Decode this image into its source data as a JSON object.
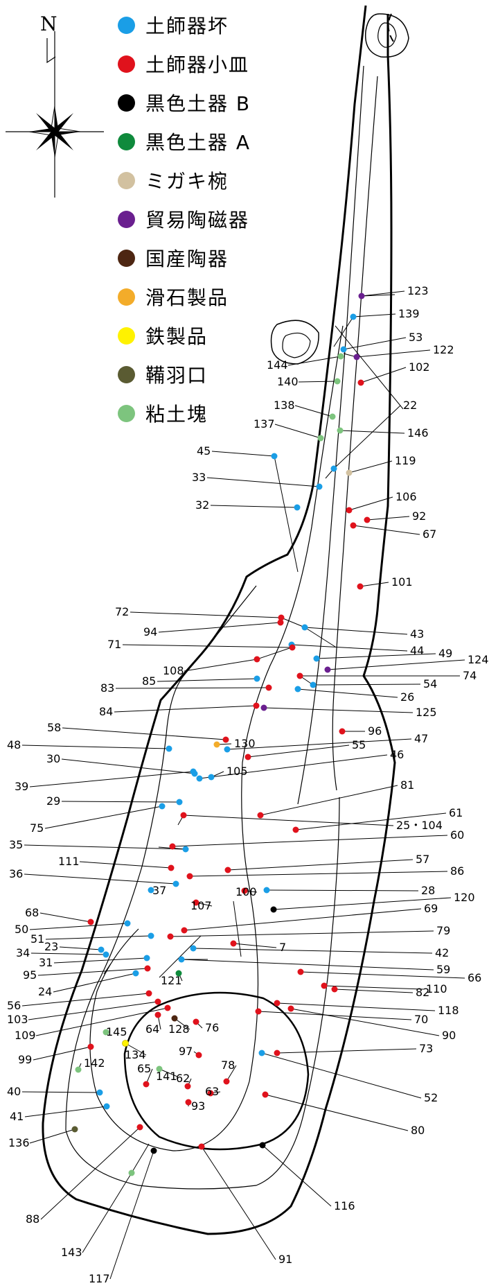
{
  "compass": {
    "north_label": "N"
  },
  "legend": [
    {
      "key": "hajiki-tsuki",
      "label": "土師器坏",
      "color": "#1a9ee6"
    },
    {
      "key": "hajiki-kozara",
      "label": "土師器小皿",
      "color": "#e0121c"
    },
    {
      "key": "kokushoku-b",
      "label": "黒色土器 B",
      "color": "#000000"
    },
    {
      "key": "kokushoku-a",
      "label": "黒色土器 A",
      "color": "#0f8a3c"
    },
    {
      "key": "migaki-wan",
      "label": "ミガキ椀",
      "color": "#d2c1a0"
    },
    {
      "key": "boeki-tojiki",
      "label": "貿易陶磁器",
      "color": "#6a1f8f"
    },
    {
      "key": "kokusan-toki",
      "label": "国産陶器",
      "color": "#4d2612"
    },
    {
      "key": "kasseki",
      "label": "滑石製品",
      "color": "#f3ac2a"
    },
    {
      "key": "tetsu",
      "label": "鉄製品",
      "color": "#fff200"
    },
    {
      "key": "fuigo",
      "label": "鞴羽口",
      "color": "#5a5b32"
    },
    {
      "key": "nendokai",
      "label": "粘土塊",
      "color": "#7dc47e"
    }
  ],
  "finds": [
    {
      "n": "123",
      "type": "boeki-tojiki"
    },
    {
      "n": "139",
      "type": "hajiki-tsuki"
    },
    {
      "n": "53",
      "type": "hajiki-tsuki"
    },
    {
      "n": "122",
      "type": "boeki-tojiki"
    },
    {
      "n": "144",
      "type": "nendokai"
    },
    {
      "n": "102",
      "type": "hajiki-kozara"
    },
    {
      "n": "140",
      "type": "nendokai"
    },
    {
      "n": "22",
      "type": "hajiki-tsuki"
    },
    {
      "n": "138",
      "type": "nendokai"
    },
    {
      "n": "146",
      "type": "nendokai"
    },
    {
      "n": "137",
      "type": "nendokai"
    },
    {
      "n": "45",
      "type": "hajiki-tsuki"
    },
    {
      "n": "119",
      "type": "migaki-wan"
    },
    {
      "n": "33",
      "type": "hajiki-tsuki"
    },
    {
      "n": "106",
      "type": "hajiki-kozara"
    },
    {
      "n": "32",
      "type": "hajiki-tsuki"
    },
    {
      "n": "92",
      "type": "hajiki-kozara"
    },
    {
      "n": "67",
      "type": "hajiki-kozara"
    },
    {
      "n": "101",
      "type": "hajiki-kozara"
    },
    {
      "n": "72",
      "type": "hajiki-kozara"
    },
    {
      "n": "43",
      "type": "hajiki-tsuki"
    },
    {
      "n": "94",
      "type": "hajiki-kozara"
    },
    {
      "n": "44",
      "type": "hajiki-tsuki"
    },
    {
      "n": "71",
      "type": "hajiki-kozara"
    },
    {
      "n": "49",
      "type": "hajiki-tsuki"
    },
    {
      "n": "124",
      "type": "boeki-tojiki"
    },
    {
      "n": "108",
      "type": "hajiki-kozara"
    },
    {
      "n": "74",
      "type": "hajiki-kozara"
    },
    {
      "n": "85",
      "type": "hajiki-tsuki"
    },
    {
      "n": "54",
      "type": "hajiki-tsuki"
    },
    {
      "n": "83",
      "type": "hajiki-kozara"
    },
    {
      "n": "26",
      "type": "hajiki-tsuki"
    },
    {
      "n": "84",
      "type": "hajiki-kozara"
    },
    {
      "n": "125",
      "type": "boeki-tojiki"
    },
    {
      "n": "58",
      "type": "hajiki-kozara"
    },
    {
      "n": "96",
      "type": "hajiki-kozara"
    },
    {
      "n": "130",
      "type": "kasseki"
    },
    {
      "n": "48",
      "type": "hajiki-tsuki"
    },
    {
      "n": "55",
      "type": "hajiki-kozara"
    },
    {
      "n": "47",
      "type": "hajiki-tsuki"
    },
    {
      "n": "30",
      "type": "hajiki-tsuki"
    },
    {
      "n": "46",
      "type": "hajiki-tsuki"
    },
    {
      "n": "105",
      "type": "hajiki-tsuki"
    },
    {
      "n": "39",
      "type": "hajiki-tsuki"
    },
    {
      "n": "81",
      "type": "hajiki-kozara"
    },
    {
      "n": "29",
      "type": "hajiki-tsuki"
    },
    {
      "n": "61",
      "type": "hajiki-kozara"
    },
    {
      "n": "75",
      "type": "hajiki-tsuki"
    },
    {
      "n": "25・104",
      "type": "hajiki-kozara"
    },
    {
      "n": "35",
      "type": "hajiki-tsuki"
    },
    {
      "n": "60",
      "type": "hajiki-kozara"
    },
    {
      "n": "111",
      "type": "hajiki-kozara"
    },
    {
      "n": "57",
      "type": "hajiki-kozara"
    },
    {
      "n": "36",
      "type": "hajiki-tsuki"
    },
    {
      "n": "86",
      "type": "hajiki-kozara"
    },
    {
      "n": "37",
      "type": "hajiki-tsuki"
    },
    {
      "n": "100",
      "type": "hajiki-kozara"
    },
    {
      "n": "28",
      "type": "hajiki-tsuki"
    },
    {
      "n": "120",
      "type": "kokushoku-b"
    },
    {
      "n": "68",
      "type": "hajiki-kozara"
    },
    {
      "n": "107",
      "type": "hajiki-kozara"
    },
    {
      "n": "69",
      "type": "hajiki-kozara"
    },
    {
      "n": "50",
      "type": "hajiki-tsuki"
    },
    {
      "n": "51",
      "type": "hajiki-tsuki"
    },
    {
      "n": "79",
      "type": "hajiki-kozara"
    },
    {
      "n": "23",
      "type": "hajiki-tsuki"
    },
    {
      "n": "34",
      "type": "hajiki-tsuki"
    },
    {
      "n": "7",
      "type": "hajiki-kozara"
    },
    {
      "n": "42",
      "type": "hajiki-tsuki"
    },
    {
      "n": "31",
      "type": "hajiki-tsuki"
    },
    {
      "n": "59",
      "type": "hajiki-tsuki"
    },
    {
      "n": "95",
      "type": "hajiki-kozara"
    },
    {
      "n": "66",
      "type": "hajiki-kozara"
    },
    {
      "n": "24",
      "type": "hajiki-tsuki"
    },
    {
      "n": "121",
      "type": "kokushoku-a"
    },
    {
      "n": "110",
      "type": "hajiki-kozara"
    },
    {
      "n": "82",
      "type": "hajiki-kozara"
    },
    {
      "n": "56",
      "type": "hajiki-kozara"
    },
    {
      "n": "118",
      "type": "hajiki-kozara"
    },
    {
      "n": "103",
      "type": "hajiki-kozara"
    },
    {
      "n": "70",
      "type": "hajiki-kozara"
    },
    {
      "n": "109",
      "type": "hajiki-kozara"
    },
    {
      "n": "90",
      "type": "hajiki-kozara"
    },
    {
      "n": "145",
      "type": "nendokai"
    },
    {
      "n": "64",
      "type": "hajiki-kozara"
    },
    {
      "n": "128",
      "type": "kokusan-toki"
    },
    {
      "n": "76",
      "type": "hajiki-kozara"
    },
    {
      "n": "73",
      "type": "hajiki-kozara"
    },
    {
      "n": "99",
      "type": "hajiki-kozara"
    },
    {
      "n": "134",
      "type": "tetsu"
    },
    {
      "n": "97",
      "type": "hajiki-kozara"
    },
    {
      "n": "142",
      "type": "nendokai"
    },
    {
      "n": "65",
      "type": "hajiki-kozara"
    },
    {
      "n": "141",
      "type": "nendokai"
    },
    {
      "n": "78",
      "type": "hajiki-kozara"
    },
    {
      "n": "62",
      "type": "hajiki-kozara"
    },
    {
      "n": "52",
      "type": "hajiki-tsuki"
    },
    {
      "n": "40",
      "type": "hajiki-tsuki"
    },
    {
      "n": "63",
      "type": "hajiki-kozara"
    },
    {
      "n": "93",
      "type": "hajiki-kozara"
    },
    {
      "n": "41",
      "type": "hajiki-tsuki"
    },
    {
      "n": "80",
      "type": "hajiki-kozara"
    },
    {
      "n": "136",
      "type": "fuigo"
    },
    {
      "n": "116",
      "type": "kokushoku-b"
    },
    {
      "n": "88",
      "type": "hajiki-kozara"
    },
    {
      "n": "91",
      "type": "hajiki-kozara"
    },
    {
      "n": "143",
      "type": "nendokai"
    },
    {
      "n": "117",
      "type": "kokushoku-b"
    }
  ]
}
